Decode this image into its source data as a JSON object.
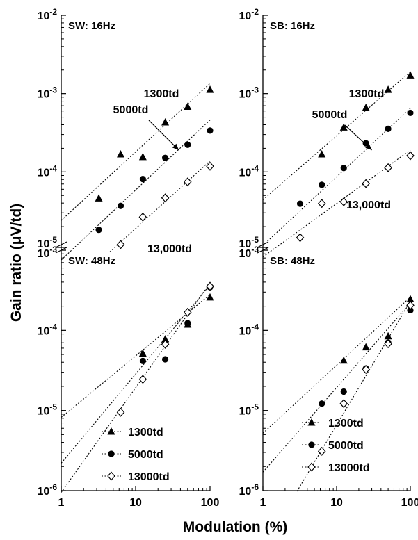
{
  "figure": {
    "ylabel": "Gain ratio (μV/td)",
    "xlabel": "Modulation (%)"
  },
  "chart_data": [
    {
      "type": "scatter",
      "title": "SW: 16Hz",
      "x_scale": "log",
      "y_scale": "log",
      "xlim": [
        1,
        100
      ],
      "ylim": [
        1e-05,
        0.01
      ],
      "x_ticks": [
        "1",
        "10",
        "100"
      ],
      "y_ticks": [
        "10-5",
        "10-4",
        "10-3",
        "10-2"
      ],
      "annotations": [
        {
          "text": "1300td"
        },
        {
          "text": "5000td",
          "arrow": true,
          "arrow_to": [
            38,
            0.00019
          ]
        },
        {
          "text": "13,000td"
        }
      ],
      "series": [
        {
          "name": "1300td",
          "marker": "triangle-filled",
          "points": [
            [
              3.2,
              4.6e-05
            ],
            [
              6.3,
              0.000168
            ],
            [
              12.5,
              0.000155
            ],
            [
              25,
              0.00043
            ],
            [
              50,
              0.00068
            ],
            [
              100,
              0.00112
            ]
          ],
          "fit": [
            [
              1,
              2.4e-05
            ],
            [
              100,
              0.00135
            ]
          ]
        },
        {
          "name": "5000td",
          "marker": "circle-filled",
          "points": [
            [
              3.2,
              1.82e-05
            ],
            [
              6.3,
              3.68e-05
            ],
            [
              12.5,
              8.1e-05
            ],
            [
              25,
              0.000151
            ],
            [
              50,
              0.000222
            ],
            [
              100,
              0.000337
            ]
          ],
          "fit": [
            [
              1,
              7.5e-06
            ],
            [
              100,
              0.00046
            ]
          ]
        },
        {
          "name": "13,000td",
          "marker": "diamond-open",
          "points": [
            [
              6.3,
              1.18e-05
            ],
            [
              12.5,
              2.65e-05
            ],
            [
              25,
              4.65e-05
            ],
            [
              50,
              7.45e-05
            ],
            [
              100,
              0.000118
            ]
          ],
          "fit": [
            [
              4.5,
              9.5e-06
            ],
            [
              100,
              0.000138
            ]
          ]
        }
      ]
    },
    {
      "type": "scatter",
      "title": "SB: 16Hz",
      "x_scale": "log",
      "y_scale": "log",
      "xlim": [
        1,
        100
      ],
      "ylim": [
        1e-05,
        0.01
      ],
      "x_ticks": [
        "1",
        "10",
        "100"
      ],
      "y_ticks": [
        "10-5",
        "10-4",
        "10-3",
        "10-2"
      ],
      "annotations": [
        {
          "text": "1300td"
        },
        {
          "text": "5000td",
          "arrow": true,
          "arrow_to": [
            30,
            0.00019
          ]
        },
        {
          "text": "13,000td"
        }
      ],
      "series": [
        {
          "name": "1300td",
          "marker": "triangle-filled",
          "points": [
            [
              6.3,
              0.000168
            ],
            [
              12.5,
              0.00037
            ],
            [
              25,
              0.00066
            ],
            [
              50,
              0.00112
            ],
            [
              100,
              0.00171
            ]
          ],
          "fit": [
            [
              1,
              4.4e-05
            ],
            [
              100,
              0.0019
            ]
          ]
        },
        {
          "name": "5000td",
          "marker": "circle-filled",
          "points": [
            [
              3.2,
              3.92e-05
            ],
            [
              6.3,
              6.85e-05
            ],
            [
              12.5,
              0.000112
            ],
            [
              25,
              0.000232
            ],
            [
              50,
              0.000355
            ],
            [
              100,
              0.000567
            ]
          ],
          "fit": [
            [
              1,
              1.15e-05
            ],
            [
              100,
              0.00065
            ]
          ]
        },
        {
          "name": "13,000td",
          "marker": "diamond-open",
          "points": [
            [
              3.2,
              1.45e-05
            ],
            [
              6.3,
              3.95e-05
            ],
            [
              12.5,
              4.15e-05
            ],
            [
              25,
              7.1e-05
            ],
            [
              50,
              0.000113
            ],
            [
              100,
              0.000161
            ]
          ],
          "fit": [
            [
              1,
              8.2e-06
            ],
            [
              100,
              0.00019
            ]
          ]
        }
      ]
    },
    {
      "type": "scatter",
      "title": "SW: 48Hz",
      "x_scale": "log",
      "y_scale": "log",
      "xlim": [
        1,
        100
      ],
      "ylim": [
        1e-06,
        0.001
      ],
      "x_ticks": [
        "1",
        "10",
        "100"
      ],
      "y_ticks": [
        "10-6",
        "10-5",
        "10-4",
        "10-3"
      ],
      "series": [
        {
          "name": "1300td",
          "marker": "triangle-filled",
          "points": [
            [
              12.5,
              5.15e-05
            ],
            [
              25,
              7.75e-05
            ],
            [
              50,
              0.000118
            ],
            [
              100,
              0.000258
            ]
          ],
          "fit": [
            [
              1,
              8.2e-06
            ],
            [
              100,
              0.00028
            ]
          ]
        },
        {
          "name": "5000td",
          "marker": "circle-filled",
          "points": [
            [
              12.5,
              4.15e-05
            ],
            [
              25,
              4.35e-05
            ],
            [
              50,
              0.000123
            ],
            [
              100,
              0.000345
            ]
          ],
          "fit": [
            [
              1,
              2.2e-06
            ],
            [
              100,
              0.00037
            ]
          ]
        },
        {
          "name": "13000td",
          "marker": "diamond-open",
          "points": [
            [
              6.3,
              9.5e-06
            ],
            [
              12.5,
              2.45e-05
            ],
            [
              25,
              6.7e-05
            ],
            [
              50,
              0.000168
            ],
            [
              100,
              0.000355
            ]
          ],
          "fit": [
            [
              1,
              9.5e-07
            ],
            [
              100,
              0.00039
            ]
          ]
        }
      ],
      "legend": {
        "position": "bottom-right",
        "entries": [
          "1300td",
          "5000td",
          "13000td"
        ]
      }
    },
    {
      "type": "scatter",
      "title": "SB: 48Hz",
      "x_scale": "log",
      "y_scale": "log",
      "xlim": [
        1,
        100
      ],
      "ylim": [
        1e-06,
        0.001
      ],
      "x_ticks": [
        "1",
        "10",
        "100"
      ],
      "y_ticks": [
        "10-6",
        "10-5",
        "10-4",
        "10-3"
      ],
      "series": [
        {
          "name": "1300td",
          "marker": "triangle-filled",
          "points": [
            [
              12.5,
              4.2e-05
            ],
            [
              25,
              6.15e-05
            ],
            [
              50,
              8.45e-05
            ],
            [
              100,
              0.000245
            ]
          ],
          "fit": [
            [
              1,
              5.2e-06
            ],
            [
              100,
              0.00026
            ]
          ]
        },
        {
          "name": "5000td",
          "marker": "circle-filled",
          "points": [
            [
              6.3,
              1.22e-05
            ],
            [
              12.5,
              1.72e-05
            ],
            [
              25,
              3.35e-05
            ],
            [
              50,
              7.05e-05
            ],
            [
              100,
              0.000178
            ]
          ],
          "fit": [
            [
              1,
              1.7e-06
            ],
            [
              100,
              0.00022
            ]
          ]
        },
        {
          "name": "13000td",
          "marker": "diamond-open",
          "points": [
            [
              6.3,
              3.1e-06
            ],
            [
              12.5,
              1.22e-05
            ],
            [
              25,
              3.25e-05
            ],
            [
              50,
              6.8e-05
            ],
            [
              100,
              0.000205
            ]
          ],
          "fit": [
            [
              2.9,
              9.8e-07
            ],
            [
              100,
              0.00023
            ]
          ]
        }
      ],
      "legend": {
        "position": "bottom-right",
        "entries": [
          "1300td",
          "5000td",
          "13000td"
        ]
      }
    }
  ]
}
